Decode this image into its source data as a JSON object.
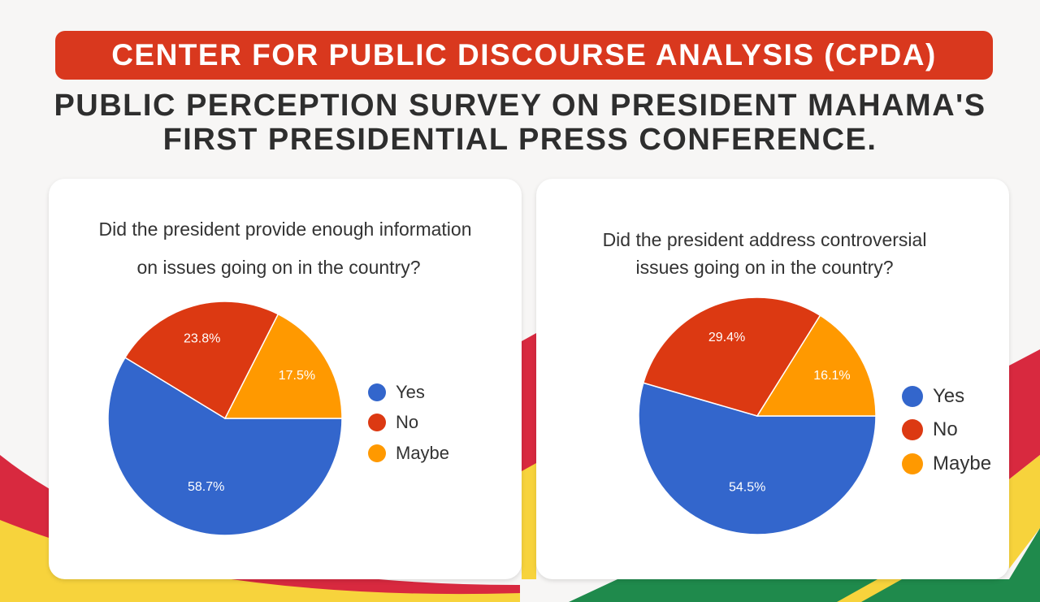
{
  "header": {
    "organization": "CENTER FOR PUBLIC DISCOURSE ANALYSIS (CPDA)",
    "title_line1": "PUBLIC PERCEPTION SURVEY ON PRESIDENT MAHAMA'S",
    "title_line2": "FIRST PRESIDENTIAL PRESS CONFERENCE."
  },
  "colors": {
    "banner": "#d9381e",
    "yes": "#3366cc",
    "no": "#dc3912",
    "maybe": "#ff9900",
    "flag_red": "#d8293f",
    "flag_yellow": "#f7d33c",
    "flag_green": "#1f8a4c"
  },
  "chart_data": [
    {
      "type": "pie",
      "title_line1": "Did the president provide enough information",
      "title_line2": "on issues going on in the country?",
      "categories": [
        "Yes",
        "No",
        "Maybe"
      ],
      "values": [
        58.7,
        23.8,
        17.5
      ],
      "labels": [
        "58.7%",
        "23.8%",
        "17.5%"
      ],
      "legend_position": "right"
    },
    {
      "type": "pie",
      "title_line1": "Did the president address controversial",
      "title_line2": "issues going on in the country?",
      "categories": [
        "Yes",
        "No",
        "Maybe"
      ],
      "values": [
        54.5,
        29.4,
        16.1
      ],
      "labels": [
        "54.5%",
        "29.4%",
        "16.1%"
      ],
      "legend_position": "right"
    }
  ]
}
